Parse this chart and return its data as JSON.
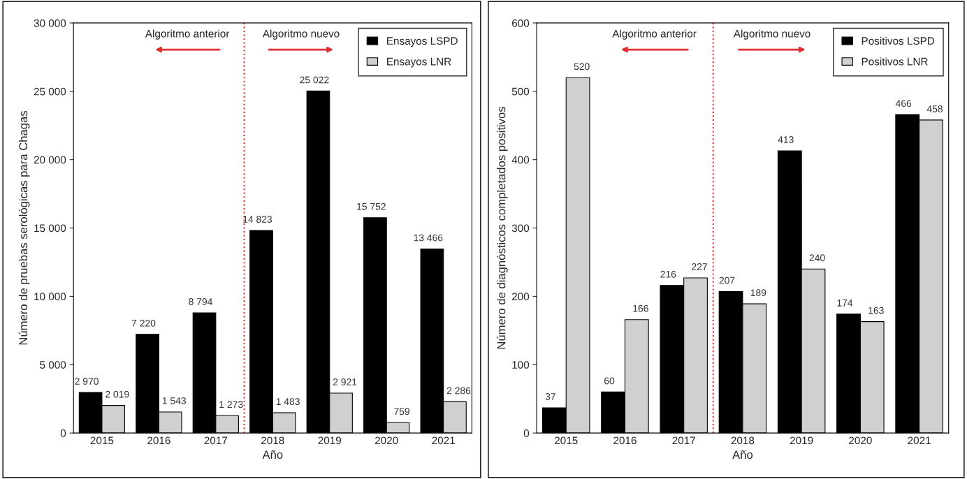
{
  "chart_data": [
    {
      "type": "bar",
      "xlabel": "Año",
      "ylabel": "Número de pruebas serológicas para Chagas",
      "x": [
        2015,
        2016,
        2017,
        2018,
        2019,
        2020,
        2021
      ],
      "xlim": [
        2014.5,
        2021.5
      ],
      "xticks": [
        2015,
        2016,
        2017,
        2018,
        2019,
        2020,
        2021
      ],
      "ref_lines": [
        {
          "axis": "x",
          "value": 2017.5,
          "color": "#e03030",
          "line_style": "dotted"
        }
      ],
      "series": [
        {
          "name": "Ensayos LSPD",
          "color": "#000000",
          "values": [
            2970,
            7220,
            8794,
            14823,
            25022,
            15752,
            13466
          ],
          "value_labels": [
            "2 970",
            "7 220",
            "8 794",
            "14 823",
            "25 022",
            "15 752",
            "13 466"
          ]
        },
        {
          "name": "Ensayos LNR",
          "color": "#d0d0d0",
          "values": [
            2019,
            1543,
            1273,
            1483,
            2921,
            759,
            2286
          ],
          "value_labels": [
            "2 019",
            "1 543",
            "1 273",
            "1 483",
            "2 921",
            "759",
            "2 286"
          ]
        }
      ],
      "ylim": [
        0,
        30000
      ],
      "yticks": [
        0,
        {
          "value": 5000,
          "label": "5 000"
        },
        {
          "value": 10000,
          "label": "10 000"
        },
        {
          "value": 15000,
          "label": "15 000"
        },
        {
          "value": 20000,
          "label": "20 000"
        },
        {
          "value": 25000,
          "label": "25 000"
        },
        {
          "value": 30000,
          "label": "30 000"
        }
      ],
      "annotations": [
        "Algoritmo anterior",
        "Algoritmo nuevo"
      ],
      "legend": "top right",
      "grid": false
    },
    {
      "type": "bar",
      "xlabel": "Año",
      "ylabel": "Número de diagnósticos completados positivos",
      "x": [
        2015,
        2016,
        2017,
        2018,
        2019,
        2020,
        2021
      ],
      "xlim": [
        2014.5,
        2021.5
      ],
      "xticks": [
        2015,
        2016,
        2017,
        2018,
        2019,
        2020,
        2021
      ],
      "ref_lines": [
        {
          "axis": "x",
          "value": 2017.5,
          "color": "#e03030",
          "line_style": "dotted"
        }
      ],
      "series": [
        {
          "name": "Positivos LSPD",
          "color": "#000000",
          "values": [
            37,
            60,
            216,
            207,
            413,
            174,
            466
          ],
          "value_labels": [
            "37",
            "60",
            "216",
            "207",
            "413",
            "174",
            "466"
          ]
        },
        {
          "name": "Positivos LNR",
          "color": "#d0d0d0",
          "values": [
            520,
            166,
            227,
            189,
            240,
            163,
            458
          ],
          "value_labels": [
            "520",
            "166",
            "227",
            "189",
            "240",
            "163",
            "458"
          ]
        }
      ],
      "ylim": [
        0,
        600
      ],
      "yticks": [
        0,
        100,
        200,
        300,
        400,
        500,
        600
      ],
      "annotations": [
        "Algoritmo anterior",
        "Algoritmo nuevo"
      ],
      "legend": "top right",
      "grid": false
    }
  ]
}
